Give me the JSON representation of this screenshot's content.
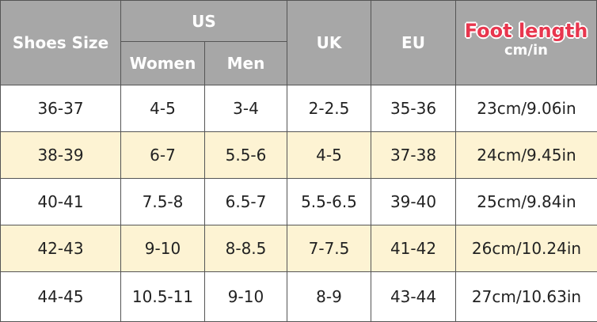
{
  "header": {
    "shoes_size": "Shoes Size",
    "us": "US",
    "women": "Women",
    "men": "Men",
    "uk": "UK",
    "eu": "EU",
    "foot_length": "Foot length",
    "unit": "cm/in"
  },
  "table": {
    "rows": [
      [
        "36-37",
        "4-5",
        "3-4",
        "2-2.5",
        "35-36",
        "23cm/9.06in"
      ],
      [
        "38-39",
        "6-7",
        "5.5-6",
        "4-5",
        "37-38",
        "24cm/9.45in"
      ],
      [
        "40-41",
        "7.5-8",
        "6.5-7",
        "5.5-6.5",
        "39-40",
        "25cm/9.84in"
      ],
      [
        "42-43",
        "9-10",
        "8-8.5",
        "7-7.5",
        "41-42",
        "26cm/10.24in"
      ],
      [
        "44-45",
        "10.5-11",
        "9-10",
        "8-9",
        "43-44",
        "27cm/10.63in"
      ]
    ]
  }
}
